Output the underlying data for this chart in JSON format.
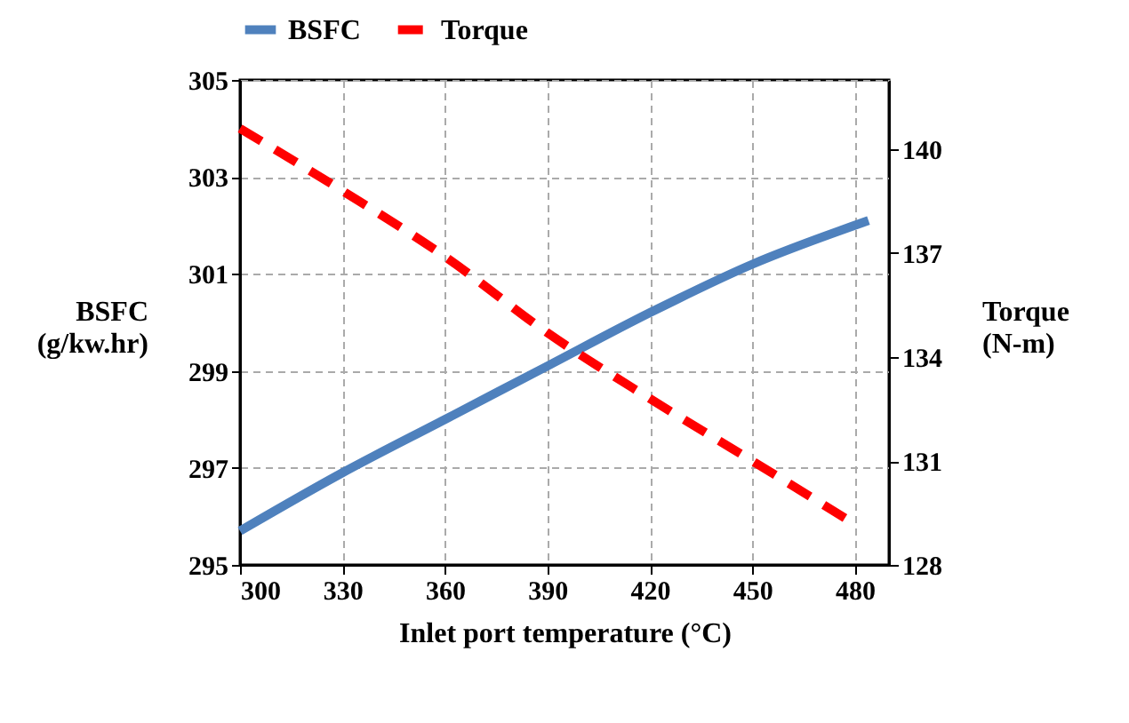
{
  "chart_data": {
    "type": "line",
    "xlabel": "Inlet port temperature (°C)",
    "ylabel": "BSFC (g/kw.hr)",
    "y2label": "Torque (N-m)",
    "xlim": [
      300,
      490
    ],
    "xticks": [
      300,
      330,
      360,
      390,
      420,
      450,
      480
    ],
    "ylim": [
      295,
      305
    ],
    "yticks": [
      295,
      297,
      299,
      301,
      303,
      305
    ],
    "y2lim": [
      128,
      142
    ],
    "y2ticks": [
      128,
      131,
      134,
      137,
      140
    ],
    "grid": true,
    "legend": "top",
    "marker": "none",
    "series": [
      {
        "name": "BSFC",
        "color": "#4f81bd",
        "line_style": "solid",
        "x": [
          300,
          330,
          360,
          390,
          420,
          450,
          484
        ],
        "values": [
          295.7,
          296.9,
          298.0,
          299.1,
          300.2,
          301.2,
          302.1
        ]
      },
      {
        "name": "Torque",
        "color": "#ff0000",
        "line_style": "dashed",
        "axis": "y2",
        "x": [
          300,
          330,
          360,
          390,
          420,
          450,
          478
        ],
        "values": [
          140.6,
          138.8,
          136.9,
          134.7,
          132.8,
          131.0,
          129.3
        ]
      }
    ]
  }
}
